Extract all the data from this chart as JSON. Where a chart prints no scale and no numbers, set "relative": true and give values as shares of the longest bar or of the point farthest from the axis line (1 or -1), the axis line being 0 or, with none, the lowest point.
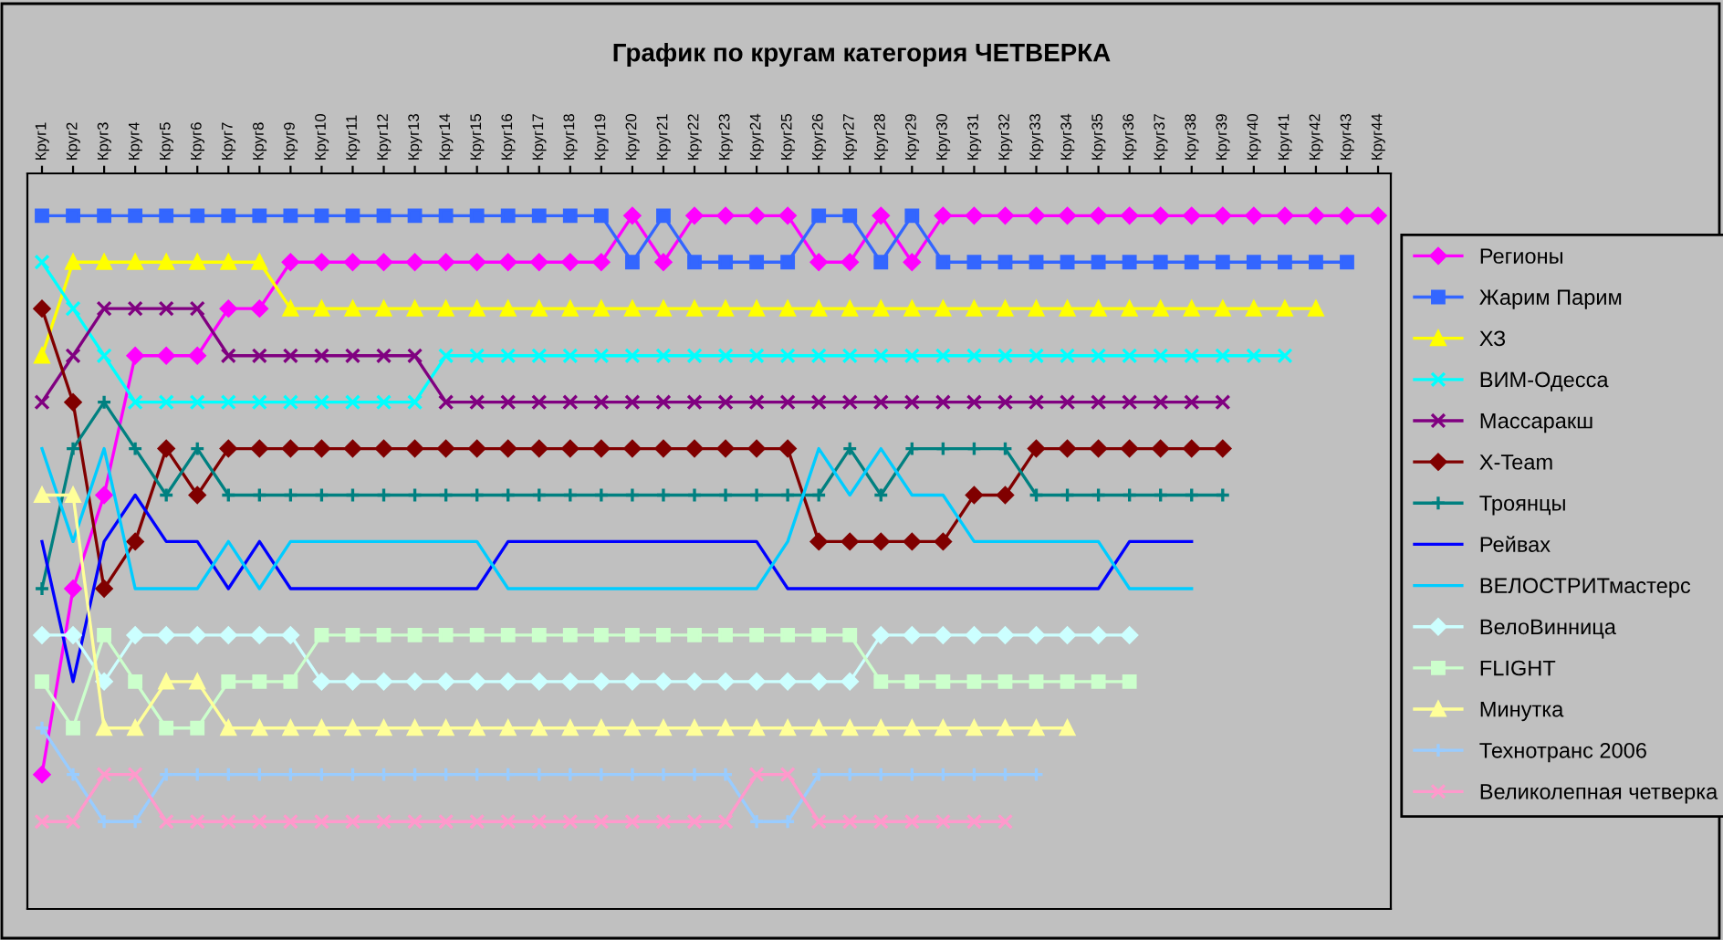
{
  "chart_data": {
    "type": "line",
    "title": "График по кругам категория ЧЕТВЕРКА",
    "relative": true,
    "legend": "right",
    "grid": false,
    "categories": [
      "Круг1",
      "Круг2",
      "Круг3",
      "Круг4",
      "Круг5",
      "Круг6",
      "Круг7",
      "Круг8",
      "Круг9",
      "Круг10",
      "Круг11",
      "Круг12",
      "Круг13",
      "Круг14",
      "Круг15",
      "Круг16",
      "Круг17",
      "Круг18",
      "Круг19",
      "Круг20",
      "Круг21",
      "Круг22",
      "Круг23",
      "Круг24",
      "Круг25",
      "Круг26",
      "Круг27",
      "Круг28",
      "Круг29",
      "Круг30",
      "Круг31",
      "Круг32",
      "Круг33",
      "Круг34",
      "Круг35",
      "Круг36",
      "Круг37",
      "Круг38",
      "Круг39",
      "Круг40",
      "Круг41",
      "Круг42",
      "Круг43",
      "Круг44"
    ],
    "series": [
      {
        "name": "Регионы",
        "color": "#ff00ff",
        "marker": "diamond",
        "values": [
          0.194,
          0.462,
          0.597,
          0.798,
          0.798,
          0.798,
          0.866,
          0.866,
          0.933,
          0.933,
          0.933,
          0.933,
          0.933,
          0.933,
          0.933,
          0.933,
          0.933,
          0.933,
          0.933,
          1,
          0.933,
          1,
          1,
          1,
          1,
          0.933,
          0.933,
          1,
          0.933,
          1,
          1,
          1,
          1,
          1,
          1,
          1,
          1,
          1,
          1,
          1,
          1,
          1,
          1,
          1
        ]
      },
      {
        "name": "Жарим Парим",
        "color": "#3366ff",
        "marker": "square",
        "values": [
          1,
          1,
          1,
          1,
          1,
          1,
          1,
          1,
          1,
          1,
          1,
          1,
          1,
          1,
          1,
          1,
          1,
          1,
          1,
          0.933,
          1,
          0.933,
          0.933,
          0.933,
          0.933,
          1,
          1,
          0.933,
          1,
          0.933,
          0.933,
          0.933,
          0.933,
          0.933,
          0.933,
          0.933,
          0.933,
          0.933,
          0.933,
          0.933,
          0.933,
          0.933,
          0.933,
          null
        ]
      },
      {
        "name": "ХЗ",
        "color": "#ffff00",
        "marker": "triangle",
        "values": [
          0.798,
          0.933,
          0.933,
          0.933,
          0.933,
          0.933,
          0.933,
          0.933,
          0.866,
          0.866,
          0.866,
          0.866,
          0.866,
          0.866,
          0.866,
          0.866,
          0.866,
          0.866,
          0.866,
          0.866,
          0.866,
          0.866,
          0.866,
          0.866,
          0.866,
          0.866,
          0.866,
          0.866,
          0.866,
          0.866,
          0.866,
          0.866,
          0.866,
          0.866,
          0.866,
          0.866,
          0.866,
          0.866,
          0.866,
          0.866,
          0.866,
          0.866,
          null,
          null
        ]
      },
      {
        "name": "ВИМ-Одесса",
        "color": "#00ffff",
        "marker": "cross",
        "values": [
          0.933,
          0.866,
          0.798,
          0.731,
          0.731,
          0.731,
          0.731,
          0.731,
          0.731,
          0.731,
          0.731,
          0.731,
          0.731,
          0.798,
          0.798,
          0.798,
          0.798,
          0.798,
          0.798,
          0.798,
          0.798,
          0.798,
          0.798,
          0.798,
          0.798,
          0.798,
          0.798,
          0.798,
          0.798,
          0.798,
          0.798,
          0.798,
          0.798,
          0.798,
          0.798,
          0.798,
          0.798,
          0.798,
          0.798,
          0.798,
          0.798,
          null,
          null,
          null
        ]
      },
      {
        "name": "Массаракш",
        "color": "#800080",
        "marker": "cross",
        "values": [
          0.731,
          0.798,
          0.866,
          0.866,
          0.866,
          0.866,
          0.798,
          0.798,
          0.798,
          0.798,
          0.798,
          0.798,
          0.798,
          0.731,
          0.731,
          0.731,
          0.731,
          0.731,
          0.731,
          0.731,
          0.731,
          0.731,
          0.731,
          0.731,
          0.731,
          0.731,
          0.731,
          0.731,
          0.731,
          0.731,
          0.731,
          0.731,
          0.731,
          0.731,
          0.731,
          0.731,
          0.731,
          0.731,
          0.731,
          null,
          null,
          null,
          null,
          null
        ]
      },
      {
        "name": "X-Team",
        "color": "#800000",
        "marker": "diamond",
        "values": [
          0.866,
          0.731,
          0.462,
          0.53,
          0.664,
          0.597,
          0.664,
          0.664,
          0.664,
          0.664,
          0.664,
          0.664,
          0.664,
          0.664,
          0.664,
          0.664,
          0.664,
          0.664,
          0.664,
          0.664,
          0.664,
          0.664,
          0.664,
          0.664,
          0.664,
          0.53,
          0.53,
          0.53,
          0.53,
          0.53,
          0.597,
          0.597,
          0.664,
          0.664,
          0.664,
          0.664,
          0.664,
          0.664,
          0.664,
          null,
          null,
          null,
          null,
          null
        ]
      },
      {
        "name": "Троянцы",
        "color": "#008080",
        "marker": "plus",
        "values": [
          0.462,
          0.664,
          0.731,
          0.664,
          0.597,
          0.664,
          0.597,
          0.597,
          0.597,
          0.597,
          0.597,
          0.597,
          0.597,
          0.597,
          0.597,
          0.597,
          0.597,
          0.597,
          0.597,
          0.597,
          0.597,
          0.597,
          0.597,
          0.597,
          0.597,
          0.597,
          0.664,
          0.597,
          0.664,
          0.664,
          0.664,
          0.664,
          0.597,
          0.597,
          0.597,
          0.597,
          0.597,
          0.597,
          0.597,
          null,
          null,
          null,
          null,
          null
        ]
      },
      {
        "name": "Рейвах",
        "color": "#0000ff",
        "marker": "none",
        "values": [
          0.53,
          0.328,
          0.53,
          0.597,
          0.53,
          0.53,
          0.462,
          0.53,
          0.462,
          0.462,
          0.462,
          0.462,
          0.462,
          0.462,
          0.462,
          0.53,
          0.53,
          0.53,
          0.53,
          0.53,
          0.53,
          0.53,
          0.53,
          0.53,
          0.462,
          0.462,
          0.462,
          0.462,
          0.462,
          0.462,
          0.462,
          0.462,
          0.462,
          0.462,
          0.462,
          0.53,
          0.53,
          0.53,
          null,
          null,
          null,
          null,
          null,
          null
        ]
      },
      {
        "name": "ВЕЛОСТРИТмастерс",
        "color": "#00ccff",
        "marker": "none",
        "values": [
          0.664,
          0.53,
          0.664,
          0.462,
          0.462,
          0.462,
          0.53,
          0.462,
          0.53,
          0.53,
          0.53,
          0.53,
          0.53,
          0.53,
          0.53,
          0.462,
          0.462,
          0.462,
          0.462,
          0.462,
          0.462,
          0.462,
          0.462,
          0.462,
          0.53,
          0.664,
          0.597,
          0.664,
          0.597,
          0.597,
          0.53,
          0.53,
          0.53,
          0.53,
          0.53,
          0.462,
          0.462,
          0.462,
          null,
          null,
          null,
          null,
          null,
          null
        ]
      },
      {
        "name": "ВелоВинница",
        "color": "#ccffff",
        "marker": "diamond",
        "values": [
          0.395,
          0.395,
          0.328,
          0.395,
          0.395,
          0.395,
          0.395,
          0.395,
          0.395,
          0.328,
          0.328,
          0.328,
          0.328,
          0.328,
          0.328,
          0.328,
          0.328,
          0.328,
          0.328,
          0.328,
          0.328,
          0.328,
          0.328,
          0.328,
          0.328,
          0.328,
          0.328,
          0.395,
          0.395,
          0.395,
          0.395,
          0.395,
          0.395,
          0.395,
          0.395,
          0.395,
          null,
          null,
          null,
          null,
          null,
          null,
          null,
          null
        ]
      },
      {
        "name": "FLIGHT",
        "color": "#ccffcc",
        "marker": "square",
        "values": [
          0.328,
          0.261,
          0.395,
          0.328,
          0.261,
          0.261,
          0.328,
          0.328,
          0.328,
          0.395,
          0.395,
          0.395,
          0.395,
          0.395,
          0.395,
          0.395,
          0.395,
          0.395,
          0.395,
          0.395,
          0.395,
          0.395,
          0.395,
          0.395,
          0.395,
          0.395,
          0.395,
          0.328,
          0.328,
          0.328,
          0.328,
          0.328,
          0.328,
          0.328,
          0.328,
          0.328,
          null,
          null,
          null,
          null,
          null,
          null,
          null,
          null
        ]
      },
      {
        "name": "Минутка",
        "color": "#ffff99",
        "marker": "triangle",
        "values": [
          0.597,
          0.597,
          0.261,
          0.261,
          0.328,
          0.328,
          0.261,
          0.261,
          0.261,
          0.261,
          0.261,
          0.261,
          0.261,
          0.261,
          0.261,
          0.261,
          0.261,
          0.261,
          0.261,
          0.261,
          0.261,
          0.261,
          0.261,
          0.261,
          0.261,
          0.261,
          0.261,
          0.261,
          0.261,
          0.261,
          0.261,
          0.261,
          0.261,
          0.261,
          null,
          null,
          null,
          null,
          null,
          null,
          null,
          null,
          null,
          null
        ]
      },
      {
        "name": "Технотранс 2006",
        "color": "#99ccff",
        "marker": "plus",
        "values": [
          0.261,
          0.194,
          0.126,
          0.126,
          0.194,
          0.194,
          0.194,
          0.194,
          0.194,
          0.194,
          0.194,
          0.194,
          0.194,
          0.194,
          0.194,
          0.194,
          0.194,
          0.194,
          0.194,
          0.194,
          0.194,
          0.194,
          0.194,
          0.126,
          0.126,
          0.194,
          0.194,
          0.194,
          0.194,
          0.194,
          0.194,
          0.194,
          0.194,
          null,
          null,
          null,
          null,
          null,
          null,
          null,
          null,
          null,
          null,
          null
        ]
      },
      {
        "name": "Великолепная четверка",
        "color": "#ff99cc",
        "marker": "cross",
        "values": [
          0.126,
          0.126,
          0.194,
          0.194,
          0.126,
          0.126,
          0.126,
          0.126,
          0.126,
          0.126,
          0.126,
          0.126,
          0.126,
          0.126,
          0.126,
          0.126,
          0.126,
          0.126,
          0.126,
          0.126,
          0.126,
          0.126,
          0.126,
          0.194,
          0.194,
          0.126,
          0.126,
          0.126,
          0.126,
          0.126,
          0.126,
          0.126,
          null,
          null,
          null,
          null,
          null,
          null,
          null,
          null,
          null,
          null,
          null,
          null
        ]
      }
    ]
  }
}
